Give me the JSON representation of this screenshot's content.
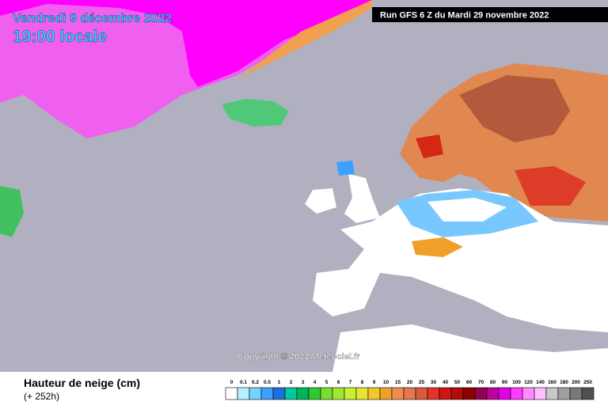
{
  "header": {
    "date": "Vendredi 9 décembre 2022",
    "time": "19:00 locale",
    "run": "Run GFS 6 Z du Mardi 29 novembre 2022"
  },
  "copyright": "Copyright © 2022 Meteociel.fr",
  "legend": {
    "title": "Hauteur de neige (cm)",
    "subtitle": "(+ 252h)",
    "scale": [
      {
        "value": 0,
        "color": "#ffffff"
      },
      {
        "value": 0.1,
        "color": "#b4f0ff"
      },
      {
        "value": 0.2,
        "color": "#78d2ff"
      },
      {
        "value": 0.5,
        "color": "#3ca0ff"
      },
      {
        "value": 1,
        "color": "#1e6edc"
      },
      {
        "value": 2,
        "color": "#00c8a0"
      },
      {
        "value": 3,
        "color": "#00b45a"
      },
      {
        "value": 4,
        "color": "#32c832"
      },
      {
        "value": 5,
        "color": "#78dc32"
      },
      {
        "value": 6,
        "color": "#a0e632"
      },
      {
        "value": 7,
        "color": "#c8f032"
      },
      {
        "value": 8,
        "color": "#e6e632"
      },
      {
        "value": 9,
        "color": "#f0c828"
      },
      {
        "value": 10,
        "color": "#f0a028"
      },
      {
        "value": 15,
        "color": "#f08c50"
      },
      {
        "value": 20,
        "color": "#e67850"
      },
      {
        "value": 25,
        "color": "#dc5a3c"
      },
      {
        "value": 30,
        "color": "#e63228"
      },
      {
        "value": 40,
        "color": "#d21414"
      },
      {
        "value": 50,
        "color": "#b40a0a"
      },
      {
        "value": 60,
        "color": "#8c0000"
      },
      {
        "value": 70,
        "color": "#960050"
      },
      {
        "value": 80,
        "color": "#be00a0"
      },
      {
        "value": 90,
        "color": "#e600e6"
      },
      {
        "value": 100,
        "color": "#ff3cff"
      },
      {
        "value": 120,
        "color": "#ff8cff"
      },
      {
        "value": 140,
        "color": "#ffbeff"
      },
      {
        "value": 160,
        "color": "#c8c8c8"
      },
      {
        "value": 180,
        "color": "#a0a0a0"
      },
      {
        "value": 200,
        "color": "#787878"
      },
      {
        "value": 250,
        "color": "#505050"
      }
    ]
  }
}
